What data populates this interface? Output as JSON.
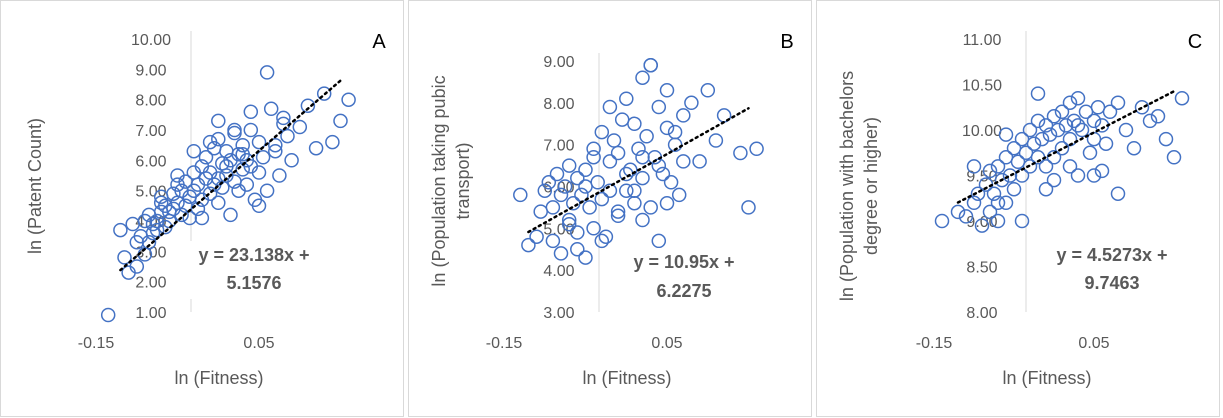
{
  "chart_data": [
    {
      "type": "scatter",
      "panel": "A",
      "xlabel": "ln (Fitness)",
      "ylabel": "ln (Patent Count)",
      "xticks": [
        -0.15,
        0.05
      ],
      "xtick_labels": [
        "-0.15",
        "0.05"
      ],
      "yticks": [
        1,
        2,
        3,
        4,
        5,
        6,
        7,
        8,
        9,
        10
      ],
      "ytick_labels": [
        "1.00",
        "2.00",
        "3.00",
        "4.00",
        "5.00",
        "6.00",
        "7.00",
        "8.00",
        "9.00",
        "10.00"
      ],
      "xlim": [
        -0.15,
        0.2
      ],
      "ylim": [
        0,
        10
      ],
      "equation_lines": [
        "y = 23.138x +",
        "5.1576"
      ],
      "trendline": {
        "slope": 23.138,
        "intercept": 5.1576,
        "x_range": [
          -0.12,
          0.15
        ]
      },
      "marker_color": "#4472C4",
      "x": [
        -0.135,
        -0.12,
        -0.115,
        -0.11,
        -0.105,
        -0.1,
        -0.1,
        -0.095,
        -0.09,
        -0.09,
        -0.085,
        -0.085,
        -0.08,
        -0.08,
        -0.075,
        -0.075,
        -0.07,
        -0.07,
        -0.065,
        -0.065,
        -0.06,
        -0.06,
        -0.055,
        -0.055,
        -0.05,
        -0.05,
        -0.045,
        -0.045,
        -0.04,
        -0.04,
        -0.035,
        -0.035,
        -0.03,
        -0.03,
        -0.025,
        -0.025,
        -0.02,
        -0.02,
        -0.015,
        -0.015,
        -0.01,
        -0.01,
        -0.005,
        -0.005,
        0.0,
        0.0,
        0.0,
        0.005,
        0.005,
        0.01,
        0.01,
        0.015,
        0.015,
        0.02,
        0.02,
        0.025,
        0.025,
        0.03,
        0.03,
        0.035,
        0.035,
        0.04,
        0.04,
        0.045,
        0.05,
        0.05,
        0.055,
        0.06,
        0.065,
        0.07,
        0.075,
        0.08,
        0.085,
        0.09,
        0.1,
        0.11,
        0.12,
        0.13,
        0.14,
        0.15,
        0.16,
        -0.07,
        -0.05,
        -0.03,
        -0.02,
        -0.01,
        0.0,
        0.01,
        0.02,
        0.03,
        0.04,
        0.05,
        0.06,
        0.07,
        0.08
      ],
      "y": [
        0.05,
        3.7,
        2.8,
        2.3,
        3.9,
        3.3,
        2.5,
        3.5,
        2.9,
        4.0,
        3.3,
        4.2,
        3.6,
        3.9,
        4.0,
        3.7,
        4.3,
        4.6,
        3.8,
        4.5,
        4.0,
        4.3,
        4.9,
        4.4,
        4.6,
        5.2,
        4.2,
        5.0,
        4.5,
        5.3,
        4.8,
        4.1,
        5.0,
        5.6,
        4.4,
        5.2,
        5.8,
        4.7,
        5.4,
        6.1,
        4.9,
        5.6,
        5.2,
        6.4,
        4.6,
        5.4,
        6.7,
        5.1,
        5.9,
        5.5,
        6.3,
        4.2,
        6.0,
        5.3,
        6.9,
        5.0,
        6.2,
        5.7,
        6.5,
        5.2,
        6.0,
        5.8,
        7.0,
        4.7,
        5.6,
        6.6,
        6.1,
        5.0,
        7.7,
        6.3,
        5.5,
        7.4,
        6.8,
        6.0,
        7.1,
        7.8,
        6.4,
        8.2,
        6.6,
        7.3,
        8.0,
        4.8,
        5.5,
        6.3,
        4.1,
        6.6,
        7.3,
        5.8,
        7.0,
        6.2,
        7.6,
        4.5,
        8.9,
        6.5,
        7.2
      ],
      "x_note": "",
      "y_note": ""
    },
    {
      "type": "scatter",
      "panel": "B",
      "xlabel": "ln (Fitness)",
      "ylabel": "ln (Population taking pubic transport)",
      "ylabel_lines": [
        "ln (Population taking pubic",
        "transport)"
      ],
      "xticks": [
        -0.15,
        0.05
      ],
      "xtick_labels": [
        "-0.15",
        "0.05"
      ],
      "yticks": [
        3,
        4,
        5,
        6,
        7,
        8,
        9
      ],
      "ytick_labels": [
        "3.00",
        "4.00",
        "5.00",
        "6.00",
        "7.00",
        "8.00",
        "9.00"
      ],
      "xlim": [
        -0.15,
        0.2
      ],
      "ylim": [
        3,
        9.5
      ],
      "equation_lines": [
        "y = 10.95x +",
        "6.2275"
      ],
      "trendline": {
        "slope": 10.95,
        "intercept": 6.2275,
        "x_range": [
          -0.12,
          0.15
        ]
      },
      "marker_color": "#4472C4",
      "x": [
        -0.13,
        -0.12,
        -0.11,
        -0.105,
        -0.1,
        -0.095,
        -0.09,
        -0.09,
        -0.085,
        -0.08,
        -0.08,
        -0.075,
        -0.07,
        -0.07,
        -0.065,
        -0.06,
        -0.06,
        -0.055,
        -0.05,
        -0.05,
        -0.045,
        -0.04,
        -0.04,
        -0.035,
        -0.03,
        -0.03,
        -0.025,
        -0.02,
        -0.02,
        -0.015,
        -0.01,
        -0.01,
        -0.005,
        0.0,
        0.0,
        0.005,
        0.01,
        0.01,
        0.015,
        0.02,
        0.02,
        0.025,
        0.03,
        0.03,
        0.035,
        0.04,
        0.045,
        0.05,
        0.05,
        0.055,
        0.06,
        0.065,
        0.07,
        0.08,
        0.09,
        0.1,
        0.11,
        0.12,
        0.14,
        0.15,
        0.16,
        -0.06,
        -0.04,
        -0.02,
        0.0,
        0.02,
        0.04,
        0.06,
        -0.07,
        -0.03,
        0.01,
        0.03,
        0.05,
        0.07,
        -0.05,
        -0.01,
        0.02,
        0.04
      ],
      "y": [
        5.8,
        4.6,
        4.8,
        5.4,
        5.9,
        6.1,
        4.7,
        5.5,
        6.3,
        4.4,
        5.8,
        6.0,
        5.1,
        6.5,
        5.6,
        4.9,
        6.2,
        5.8,
        4.3,
        6.4,
        5.5,
        6.7,
        5.0,
        6.1,
        5.7,
        7.3,
        4.8,
        6.6,
        5.9,
        7.1,
        5.3,
        6.8,
        7.6,
        5.9,
        8.1,
        6.4,
        5.6,
        7.5,
        6.9,
        8.6,
        6.2,
        7.2,
        5.5,
        8.9,
        6.7,
        7.9,
        6.3,
        7.4,
        8.3,
        6.1,
        7.0,
        5.8,
        7.7,
        8.0,
        6.6,
        8.3,
        7.1,
        7.7,
        6.8,
        5.5,
        6.9,
        4.5,
        6.9,
        7.9,
        6.3,
        5.2,
        6.5,
        7.3,
        5.2,
        4.7,
        5.9,
        8.9,
        5.6,
        6.6,
        6.0,
        5.4,
        6.7,
        4.7
      ],
      "x_note": "",
      "y_note": ""
    },
    {
      "type": "scatter",
      "panel": "C",
      "xlabel": "ln (Fitness)",
      "ylabel": "ln (Population with bachelors degree or higher)",
      "ylabel_lines": [
        "ln (Population with bachelors",
        "degree or higher)"
      ],
      "xticks": [
        -0.15,
        0.05
      ],
      "xtick_labels": [
        "-0.15",
        "0.05"
      ],
      "yticks": [
        8.0,
        8.5,
        9.0,
        9.5,
        10.0,
        10.5,
        11.0
      ],
      "ytick_labels": [
        "8.00",
        "8.50",
        "9.00",
        "9.50",
        "10.00",
        "10.50",
        "11.00"
      ],
      "xlim": [
        -0.15,
        0.2
      ],
      "ylim": [
        8.0,
        11.0
      ],
      "equation_lines": [
        "y = 4.5273x +",
        "9.7463"
      ],
      "trendline": {
        "slope": 4.5273,
        "intercept": 9.7463,
        "x_range": [
          -0.12,
          0.15
        ]
      },
      "marker_color": "#4472C4",
      "x": [
        -0.14,
        -0.12,
        -0.11,
        -0.1,
        -0.095,
        -0.09,
        -0.085,
        -0.08,
        -0.08,
        -0.075,
        -0.07,
        -0.07,
        -0.065,
        -0.06,
        -0.06,
        -0.055,
        -0.05,
        -0.05,
        -0.045,
        -0.04,
        -0.04,
        -0.035,
        -0.03,
        -0.03,
        -0.025,
        -0.02,
        -0.02,
        -0.015,
        -0.01,
        -0.01,
        -0.005,
        0.0,
        0.0,
        0.005,
        0.01,
        0.01,
        0.015,
        0.02,
        0.02,
        0.025,
        0.03,
        0.03,
        0.035,
        0.04,
        0.045,
        0.05,
        0.05,
        0.055,
        0.06,
        0.065,
        0.07,
        0.08,
        0.09,
        0.1,
        0.11,
        0.12,
        0.13,
        0.14,
        0.15,
        0.16,
        -0.1,
        -0.07,
        -0.04,
        -0.01,
        0.02,
        0.05,
        0.08,
        -0.06,
        -0.02,
        0.0,
        0.03,
        0.06
      ],
      "y": [
        9.0,
        9.1,
        9.05,
        9.2,
        9.3,
        8.95,
        9.4,
        9.1,
        9.55,
        9.3,
        9.6,
        9.0,
        9.45,
        9.7,
        9.2,
        9.5,
        9.8,
        9.35,
        9.65,
        9.9,
        9.5,
        9.75,
        10.0,
        9.6,
        9.85,
        9.7,
        10.1,
        9.9,
        10.05,
        9.6,
        9.95,
        10.15,
        9.7,
        10.0,
        9.8,
        10.2,
        10.05,
        9.9,
        10.3,
        10.1,
        9.5,
        10.35,
        10.0,
        10.2,
        9.75,
        10.1,
        9.9,
        10.25,
        10.05,
        9.85,
        10.2,
        10.3,
        10.0,
        9.8,
        10.25,
        10.1,
        10.15,
        9.9,
        9.7,
        10.35,
        9.6,
        9.2,
        9.0,
        9.35,
        9.6,
        9.5,
        9.3,
        9.95,
        10.4,
        9.45,
        10.05,
        9.55
      ],
      "x_note": "",
      "y_note": ""
    }
  ]
}
